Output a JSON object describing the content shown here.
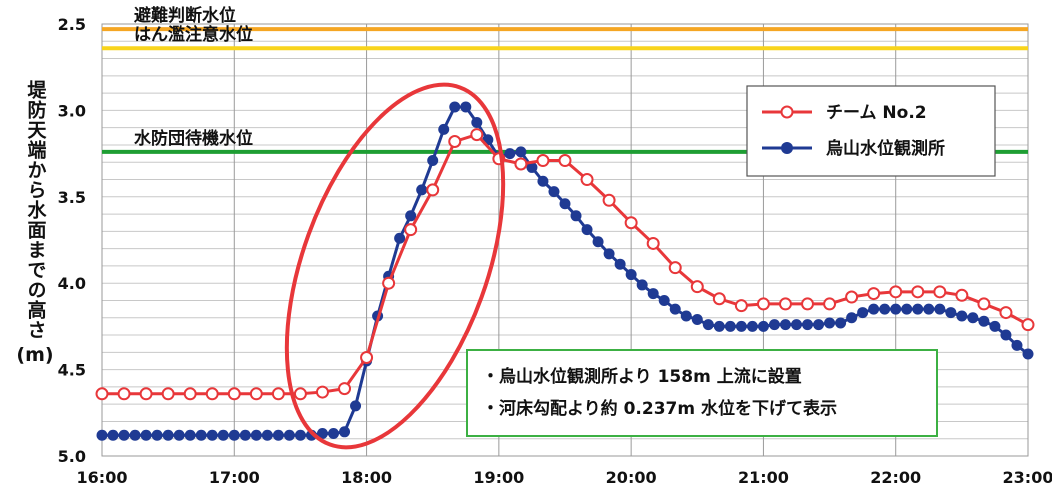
{
  "chart_data": {
    "type": "line",
    "ylabel": "堤防天端から水面までの高さ",
    "yunit": "(m)",
    "xlim": [
      "16:00",
      "23:00"
    ],
    "ylim": [
      2.5,
      5.0
    ],
    "y_inverted": true,
    "grid": true,
    "legend_position": "top-right",
    "x_ticks": [
      "16:00",
      "17:00",
      "18:00",
      "19:00",
      "20:00",
      "21:00",
      "22:00",
      "23:00"
    ],
    "y_ticks": [
      "2.5",
      "3.0",
      "3.5",
      "4.0",
      "4.5",
      "5.0"
    ],
    "reference_lines": [
      {
        "label": "避難判断水位",
        "value": 2.53,
        "color": "#f5a623"
      },
      {
        "label": "はん濫注意水位",
        "value": 2.64,
        "color": "#f8d41c"
      },
      {
        "label": "水防団待機水位",
        "value": 3.24,
        "color": "#1e9e33"
      }
    ],
    "series": [
      {
        "name": "チーム No.2",
        "color": "#e8373a",
        "marker": "open-circle",
        "x": [
          "16:00",
          "16:10",
          "16:20",
          "16:30",
          "16:40",
          "16:50",
          "17:00",
          "17:10",
          "17:20",
          "17:30",
          "17:40",
          "17:50",
          "18:00",
          "18:10",
          "18:20",
          "18:30",
          "18:40",
          "18:50",
          "19:00",
          "19:10",
          "19:20",
          "19:30",
          "19:40",
          "19:50",
          "20:00",
          "20:10",
          "20:20",
          "20:30",
          "20:40",
          "20:50",
          "21:00",
          "21:10",
          "21:20",
          "21:30",
          "21:40",
          "21:50",
          "22:00",
          "22:10",
          "22:20",
          "22:30",
          "22:40",
          "22:50",
          "23:00"
        ],
        "values": [
          4.64,
          4.64,
          4.64,
          4.64,
          4.64,
          4.64,
          4.64,
          4.64,
          4.64,
          4.64,
          4.63,
          4.61,
          4.43,
          4.0,
          3.69,
          3.46,
          3.18,
          3.14,
          3.28,
          3.31,
          3.29,
          3.29,
          3.4,
          3.52,
          3.65,
          3.77,
          3.91,
          4.02,
          4.09,
          4.13,
          4.12,
          4.12,
          4.12,
          4.12,
          4.08,
          4.06,
          4.05,
          4.05,
          4.05,
          4.07,
          4.12,
          4.17,
          4.24
        ]
      },
      {
        "name": "烏山水位観測所",
        "color": "#1f3a93",
        "marker": "filled-circle",
        "x": [
          "16:00",
          "16:05",
          "16:10",
          "16:15",
          "16:20",
          "16:25",
          "16:30",
          "16:35",
          "16:40",
          "16:45",
          "16:50",
          "16:55",
          "17:00",
          "17:05",
          "17:10",
          "17:15",
          "17:20",
          "17:25",
          "17:30",
          "17:35",
          "17:40",
          "17:45",
          "17:50",
          "17:55",
          "18:00",
          "18:05",
          "18:10",
          "18:15",
          "18:20",
          "18:25",
          "18:30",
          "18:35",
          "18:40",
          "18:45",
          "18:50",
          "18:55",
          "19:00",
          "19:05",
          "19:10",
          "19:15",
          "19:20",
          "19:25",
          "19:30",
          "19:35",
          "19:40",
          "19:45",
          "19:50",
          "19:55",
          "20:00",
          "20:05",
          "20:10",
          "20:15",
          "20:20",
          "20:25",
          "20:30",
          "20:35",
          "20:40",
          "20:45",
          "20:50",
          "20:55",
          "21:00",
          "21:05",
          "21:10",
          "21:15",
          "21:20",
          "21:25",
          "21:30",
          "21:35",
          "21:40",
          "21:45",
          "21:50",
          "21:55",
          "22:00",
          "22:05",
          "22:10",
          "22:15",
          "22:20",
          "22:25",
          "22:30",
          "22:35",
          "22:40",
          "22:45",
          "22:50",
          "22:55",
          "23:00"
        ],
        "values": [
          4.88,
          4.88,
          4.88,
          4.88,
          4.88,
          4.88,
          4.88,
          4.88,
          4.88,
          4.88,
          4.88,
          4.88,
          4.88,
          4.88,
          4.88,
          4.88,
          4.88,
          4.88,
          4.88,
          4.88,
          4.87,
          4.87,
          4.86,
          4.71,
          4.45,
          4.19,
          3.96,
          3.74,
          3.61,
          3.46,
          3.29,
          3.11,
          2.98,
          2.98,
          3.07,
          3.17,
          3.27,
          3.25,
          3.24,
          3.33,
          3.41,
          3.47,
          3.54,
          3.61,
          3.69,
          3.76,
          3.83,
          3.89,
          3.95,
          4.01,
          4.06,
          4.1,
          4.15,
          4.19,
          4.21,
          4.24,
          4.25,
          4.25,
          4.25,
          4.25,
          4.25,
          4.24,
          4.24,
          4.24,
          4.24,
          4.24,
          4.23,
          4.23,
          4.2,
          4.17,
          4.15,
          4.15,
          4.15,
          4.15,
          4.15,
          4.15,
          4.15,
          4.17,
          4.19,
          4.2,
          4.22,
          4.25,
          4.3,
          4.36,
          4.41
        ]
      }
    ],
    "annotations": [
      "・烏山水位観測所より 158m 上流に設置",
      "・河床勾配より約 0.237m 水位を下げて表示"
    ],
    "highlight": {
      "shape": "ellipse",
      "color": "#e8373a"
    }
  }
}
